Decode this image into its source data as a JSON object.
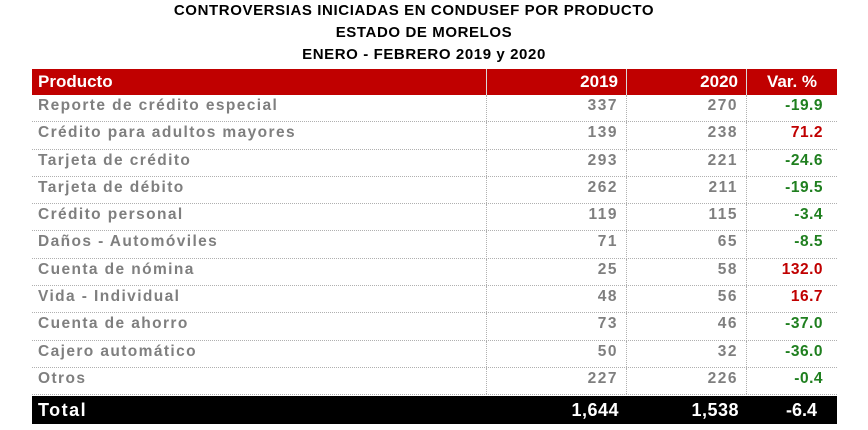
{
  "title": {
    "line1": "CONTROVERSIAS INICIADAS EN CONDUSEF POR PRODUCTO",
    "line2": "ESTADO DE MORELOS",
    "line3": "ENERO - FEBRERO 2019 y 2020"
  },
  "header": {
    "product": "Producto",
    "y2019": "2019",
    "y2020": "2020",
    "var": "Var. %"
  },
  "rows": [
    {
      "product": "Reporte de crédito especial",
      "y2019": "337",
      "y2020": "270",
      "var": "-19.9",
      "trend": "down"
    },
    {
      "product": "Crédito para adultos mayores",
      "y2019": "139",
      "y2020": "238",
      "var": "71.2",
      "trend": "up"
    },
    {
      "product": "Tarjeta de crédito",
      "y2019": "293",
      "y2020": "221",
      "var": "-24.6",
      "trend": "down"
    },
    {
      "product": "Tarjeta de débito",
      "y2019": "262",
      "y2020": "211",
      "var": "-19.5",
      "trend": "down"
    },
    {
      "product": "Crédito personal",
      "y2019": "119",
      "y2020": "115",
      "var": "-3.4",
      "trend": "down"
    },
    {
      "product": "Daños - Automóviles",
      "y2019": "71",
      "y2020": "65",
      "var": "-8.5",
      "trend": "down"
    },
    {
      "product": "Cuenta de nómina",
      "y2019": "25",
      "y2020": "58",
      "var": "132.0",
      "trend": "up"
    },
    {
      "product": "Vida - Individual",
      "y2019": "48",
      "y2020": "56",
      "var": "16.7",
      "trend": "up"
    },
    {
      "product": "Cuenta de ahorro",
      "y2019": "73",
      "y2020": "46",
      "var": "-37.0",
      "trend": "down"
    },
    {
      "product": "Cajero automático",
      "y2019": "50",
      "y2020": "32",
      "var": "-36.0",
      "trend": "down"
    },
    {
      "product": "Otros",
      "y2019": "227",
      "y2020": "226",
      "var": "-0.4",
      "trend": "down"
    }
  ],
  "total": {
    "product": "Total",
    "y2019": "1,644",
    "y2020": "1,538",
    "var": "-6.4"
  },
  "colors": {
    "header_bg": "#c00000",
    "decrease": "#1f7f1f",
    "increase": "#c00000",
    "total_bg": "#000000"
  }
}
